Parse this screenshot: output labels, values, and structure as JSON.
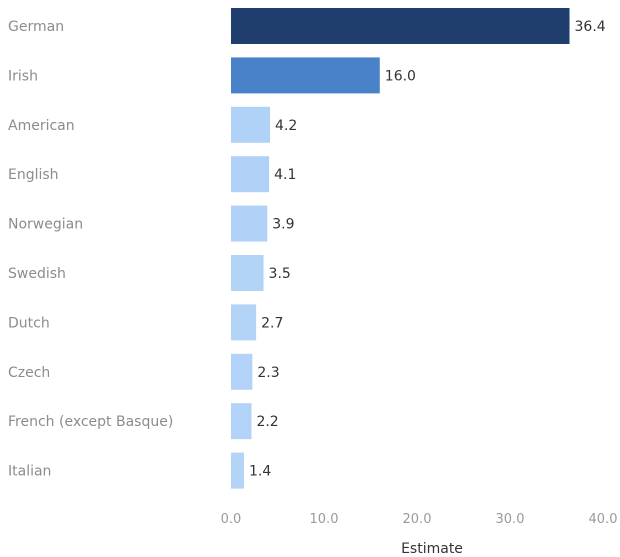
{
  "chart_data": {
    "type": "bar",
    "orientation": "horizontal",
    "categories": [
      "German",
      "Irish",
      "American",
      "English",
      "Norwegian",
      "Swedish",
      "Dutch",
      "Czech",
      "French (except Basque)",
      "Italian"
    ],
    "values": [
      36.4,
      16.0,
      4.2,
      4.1,
      3.9,
      3.5,
      2.7,
      2.3,
      2.2,
      1.4
    ],
    "value_labels": [
      "36.4",
      "16.0",
      "4.2",
      "4.1",
      "3.9",
      "3.5",
      "2.7",
      "2.3",
      "2.2",
      "1.4"
    ],
    "xlabel": "Estimate",
    "xlim": [
      0,
      40
    ],
    "xticks": [
      0,
      10,
      20,
      30,
      40
    ],
    "xtick_labels": [
      "0.0",
      "10.0",
      "20.0",
      "30.0",
      "40.0"
    ],
    "grid": false,
    "legend": "none",
    "color_scale": {
      "low": "#b3d4f7",
      "high": "#1f3e6e",
      "mid": "#4a82c9"
    }
  }
}
